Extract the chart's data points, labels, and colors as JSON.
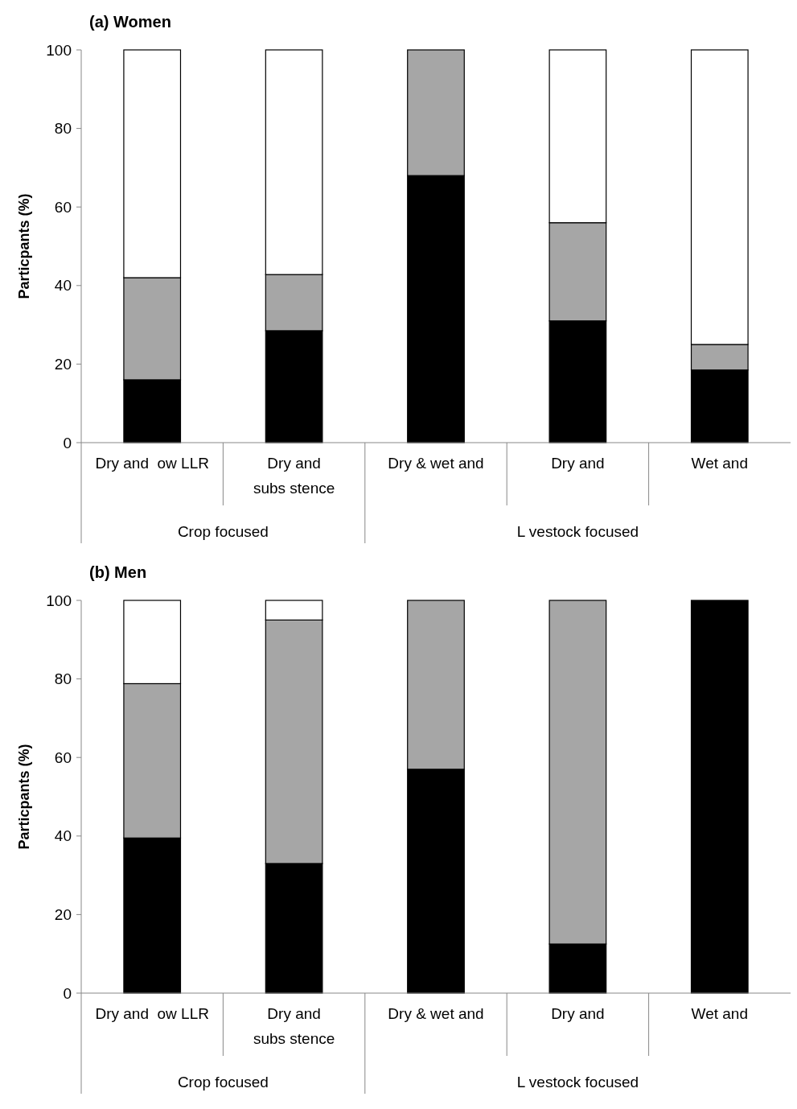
{
  "chart_data": [
    {
      "type": "bar",
      "title": "(a) Women",
      "ylabel": "Particpants (%)",
      "stacked": true,
      "categories": [
        "Dry and  ow LLR",
        "Dry and subs stence",
        "Dry & wet and",
        "Dry and",
        "Wet and"
      ],
      "series": [
        {
          "color": "#000000",
          "values": [
            16,
            28.5,
            68,
            31,
            18.5
          ]
        },
        {
          "color": "#a6a6a6",
          "values": [
            26,
            14.3,
            32,
            25,
            6.5
          ]
        },
        {
          "color": "#ffffff",
          "values": [
            58,
            57.2,
            0,
            44,
            75
          ]
        }
      ],
      "annotations": [
        "Crop focused",
        "L vestock focused"
      ],
      "ylim": [
        0,
        100
      ],
      "yticks": [
        0,
        20,
        40,
        60,
        80,
        100
      ]
    },
    {
      "type": "bar",
      "title": "(b) Men",
      "ylabel": "Particpants (%)",
      "stacked": true,
      "categories": [
        "Dry and  ow LLR",
        "Dry and subs stence",
        "Dry & wet and",
        "Dry and",
        "Wet and"
      ],
      "series": [
        {
          "color": "#000000",
          "values": [
            39.5,
            33,
            57,
            12.5,
            100
          ]
        },
        {
          "color": "#a6a6a6",
          "values": [
            39.3,
            62,
            43,
            87.5,
            0
          ]
        },
        {
          "color": "#ffffff",
          "values": [
            21.2,
            5,
            0,
            0,
            0
          ]
        }
      ],
      "annotations": [
        "Crop focused",
        "L vestock focused"
      ],
      "ylim": [
        0,
        100
      ],
      "yticks": [
        0,
        20,
        40,
        60,
        80,
        100
      ]
    }
  ]
}
